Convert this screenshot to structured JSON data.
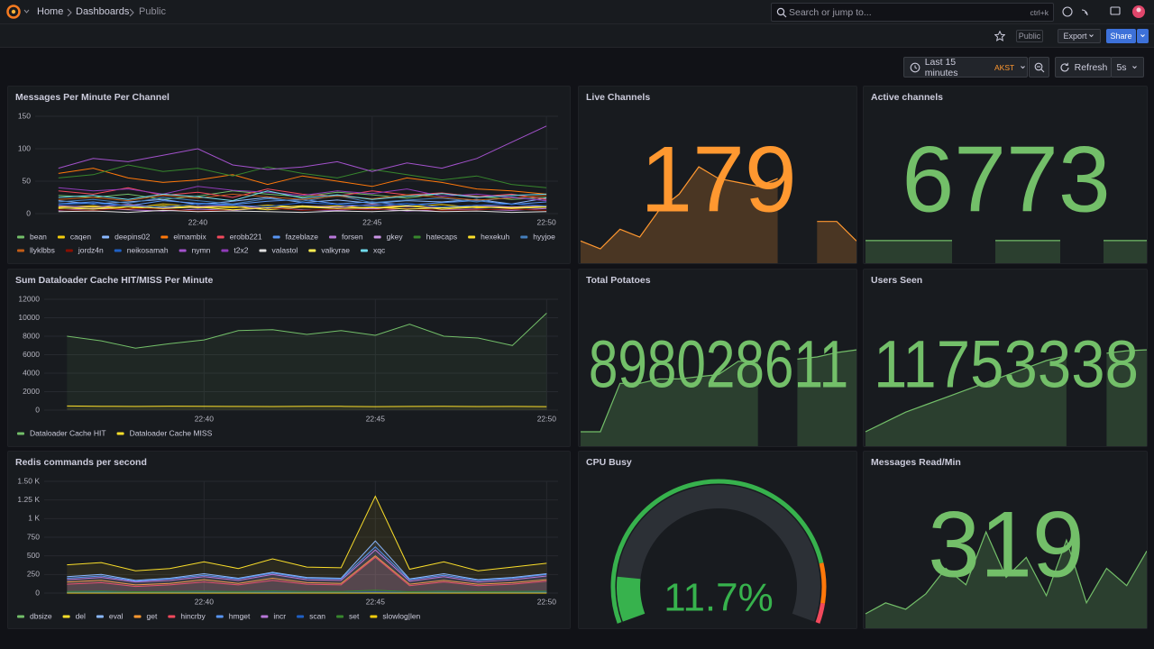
{
  "header": {
    "breadcrumbs": [
      "Home",
      "Dashboards",
      "Public"
    ],
    "search": "Search or jump to...",
    "shortcut": "ctrl+k"
  },
  "toolbar": {
    "badge": "Public",
    "export": "Export",
    "share": "Share",
    "time_range": "Last 15 minutes",
    "timezone": "AKST",
    "refresh": "Refresh",
    "interval": "5s"
  },
  "chart_data": [
    {
      "type": "line",
      "title": "Messages Per Minute Per Channel",
      "x": [
        "22:36",
        "22:37",
        "22:38",
        "22:39",
        "22:40",
        "22:41",
        "22:42",
        "22:43",
        "22:44",
        "22:45",
        "22:46",
        "22:47",
        "22:48",
        "22:49",
        "22:50"
      ],
      "xlim": [
        "22:35:20",
        "22:50:20"
      ],
      "xticks": [
        "22:40",
        "22:45",
        "22:50"
      ],
      "ylim": [
        0,
        150
      ],
      "yticks": [
        0,
        50,
        100,
        150
      ],
      "grid": true,
      "fill": false,
      "series": [
        {
          "name": "bean",
          "color": "#73BF69",
          "values": [
            28,
            25,
            30,
            22,
            27,
            35,
            30,
            26,
            33,
            29,
            24,
            31,
            27,
            22,
            25
          ]
        },
        {
          "name": "caqen",
          "color": "#F2CC0C",
          "values": [
            10,
            12,
            8,
            15,
            11,
            9,
            13,
            10,
            12,
            8,
            11,
            14,
            9,
            10,
            12
          ]
        },
        {
          "name": "deepins02",
          "color": "#8AB8FF",
          "values": [
            20,
            15,
            18,
            22,
            14,
            19,
            25,
            17,
            21,
            16,
            20,
            18,
            22,
            15,
            24
          ]
        },
        {
          "name": "elmambix",
          "color": "#FF780A",
          "values": [
            62,
            70,
            55,
            48,
            52,
            60,
            45,
            58,
            50,
            42,
            55,
            48,
            38,
            35,
            30
          ]
        },
        {
          "name": "erobb221",
          "color": "#F2495C",
          "values": [
            35,
            30,
            40,
            28,
            33,
            25,
            38,
            30,
            27,
            35,
            29,
            32,
            26,
            30,
            22
          ]
        },
        {
          "name": "fazeblaze",
          "color": "#5794F2",
          "values": [
            15,
            18,
            12,
            20,
            16,
            14,
            19,
            22,
            15,
            18,
            13,
            17,
            20,
            14,
            18
          ]
        },
        {
          "name": "forsen",
          "color": "#B877D9",
          "values": [
            5,
            8,
            6,
            4,
            7,
            5,
            9,
            6,
            5,
            8,
            4,
            6,
            7,
            5,
            8
          ]
        },
        {
          "name": "gkey",
          "color": "#CA95E5",
          "values": [
            12,
            10,
            14,
            9,
            11,
            13,
            8,
            12,
            10,
            14,
            11,
            9,
            13,
            10,
            12
          ]
        },
        {
          "name": "hatecaps",
          "color": "#37872D",
          "values": [
            55,
            60,
            75,
            65,
            70,
            58,
            72,
            62,
            55,
            68,
            60,
            52,
            58,
            45,
            40
          ]
        },
        {
          "name": "hexekuh",
          "color": "#FADE2A",
          "values": [
            8,
            10,
            7,
            12,
            9,
            11,
            6,
            10,
            8,
            9,
            12,
            7,
            10,
            9,
            11
          ]
        },
        {
          "name": "hyyjoe",
          "color": "#447EBC",
          "values": [
            18,
            22,
            16,
            25,
            20,
            15,
            23,
            19,
            28,
            17,
            21,
            24,
            18,
            26,
            20
          ]
        },
        {
          "name": "llyklbbs",
          "color": "#C15C17",
          "values": [
            22,
            25,
            20,
            28,
            24,
            30,
            26,
            22,
            27,
            23,
            29,
            25,
            21,
            24,
            28
          ]
        },
        {
          "name": "jordz4n",
          "color": "#890F02",
          "values": [
            6,
            5,
            8,
            7,
            4,
            6,
            9,
            5,
            7,
            6,
            8,
            5,
            6,
            7,
            5
          ]
        },
        {
          "name": "neikosamah",
          "color": "#1F60C4",
          "values": [
            14,
            16,
            12,
            10,
            15,
            13,
            11,
            17,
            14,
            12,
            16,
            10,
            13,
            15,
            12
          ]
        },
        {
          "name": "nymn",
          "color": "#A352CC",
          "values": [
            70,
            85,
            80,
            90,
            100,
            75,
            68,
            72,
            80,
            65,
            78,
            70,
            85,
            110,
            135
          ]
        },
        {
          "name": "t2x2",
          "color": "#8F3BB8",
          "values": [
            40,
            35,
            38,
            30,
            42,
            36,
            33,
            28,
            35,
            31,
            38,
            27,
            30,
            25,
            20
          ]
        },
        {
          "name": "valastol",
          "color": "#E0E0E0",
          "values": [
            3,
            4,
            2,
            5,
            3,
            4,
            3,
            2,
            4,
            3,
            5,
            3,
            4,
            2,
            3
          ]
        },
        {
          "name": "valkyrae",
          "color": "#FFEE52",
          "values": [
            9,
            7,
            11,
            8,
            10,
            6,
            9,
            12,
            8,
            10,
            7,
            9,
            11,
            8,
            10
          ]
        },
        {
          "name": "xqc",
          "color": "#70DBED",
          "values": [
            25,
            28,
            22,
            30,
            26,
            20,
            35,
            24,
            29,
            22,
            27,
            31,
            25,
            28,
            30
          ]
        }
      ]
    },
    {
      "type": "stat",
      "title": "Live Channels",
      "value": 179,
      "color": "#FF9830",
      "values": [
        160,
        158,
        163,
        161,
        168,
        172,
        179,
        176,
        175,
        174,
        176,
        null,
        165,
        165,
        160
      ]
    },
    {
      "type": "stat",
      "title": "Active channels",
      "value": 6773,
      "color": "#73BF69",
      "values": [
        6773,
        6773,
        6773,
        6773,
        6773,
        null,
        6773,
        6773,
        6773,
        6773,
        null,
        6773,
        6773,
        6773
      ]
    },
    {
      "type": "line",
      "title": "Sum Dataloader Cache HIT/MISS Per Minute",
      "x": [
        "22:36",
        "22:37",
        "22:38",
        "22:39",
        "22:40",
        "22:41",
        "22:42",
        "22:43",
        "22:44",
        "22:45",
        "22:46",
        "22:47",
        "22:48",
        "22:49",
        "22:50"
      ],
      "xlim": [
        "22:35:20",
        "22:50:20"
      ],
      "xticks": [
        "22:40",
        "22:45",
        "22:50"
      ],
      "ylim": [
        0,
        12000
      ],
      "yticks": [
        0,
        2000,
        4000,
        6000,
        8000,
        10000,
        12000
      ],
      "grid": true,
      "fill": true,
      "series": [
        {
          "name": "Dataloader Cache HIT",
          "color": "#73BF69",
          "values": [
            8000,
            7500,
            6700,
            7200,
            7600,
            8600,
            8700,
            8200,
            8600,
            8100,
            9300,
            8000,
            7800,
            7000,
            10500
          ]
        },
        {
          "name": "Dataloader Cache MISS",
          "color": "#FADE2A",
          "values": [
            450,
            420,
            400,
            430,
            410,
            400,
            390,
            420,
            410,
            380,
            400,
            410,
            390,
            400,
            380
          ]
        }
      ]
    },
    {
      "type": "stat",
      "title": "Total Potatoes",
      "value": 898028611,
      "color": "#73BF69",
      "values": [
        898010000,
        898010000,
        898021000,
        898021000,
        898022000,
        898022000,
        898022500,
        898023000,
        898026000,
        898026000,
        null,
        898026500,
        898027000,
        898028000,
        898028611
      ]
    },
    {
      "type": "stat",
      "title": "Users Seen",
      "value": 11753338,
      "color": "#73BF69",
      "values": [
        11750000,
        11750400,
        11750800,
        11751100,
        11751400,
        11751700,
        11752000,
        11752300,
        11752600,
        11752900,
        11753100,
        null,
        11753200,
        11753300,
        11753338
      ]
    },
    {
      "type": "line",
      "title": "Redis commands per second",
      "x": [
        "22:36",
        "22:37",
        "22:38",
        "22:39",
        "22:40",
        "22:41",
        "22:42",
        "22:43",
        "22:44",
        "22:45",
        "22:46",
        "22:47",
        "22:48",
        "22:49",
        "22:50"
      ],
      "xlim": [
        "22:35:20",
        "22:50:20"
      ],
      "xticks": [
        "22:40",
        "22:45",
        "22:50"
      ],
      "ylim": [
        0,
        1500
      ],
      "yticks": [
        0,
        250,
        500,
        750,
        {
          "value": 1000,
          "label": "1 K"
        },
        {
          "value": 1250,
          "label": "1.25 K"
        },
        {
          "value": 1500,
          "label": "1.50 K"
        }
      ],
      "grid": true,
      "fill": true,
      "series": [
        {
          "name": "dbsize",
          "color": "#73BF69",
          "values": [
            5,
            5,
            5,
            5,
            5,
            5,
            5,
            5,
            5,
            5,
            5,
            5,
            5,
            5,
            5
          ]
        },
        {
          "name": "del",
          "color": "#FADE2A",
          "values": [
            380,
            410,
            300,
            330,
            420,
            330,
            460,
            350,
            340,
            1300,
            320,
            420,
            300,
            350,
            400
          ]
        },
        {
          "name": "eval",
          "color": "#8AB8FF",
          "values": [
            220,
            250,
            170,
            200,
            260,
            200,
            280,
            210,
            200,
            700,
            190,
            260,
            180,
            210,
            260
          ]
        },
        {
          "name": "get",
          "color": "#FF9830",
          "values": [
            150,
            170,
            110,
            130,
            180,
            130,
            200,
            140,
            130,
            500,
            120,
            170,
            120,
            140,
            180
          ]
        },
        {
          "name": "hincrby",
          "color": "#F2495C",
          "values": [
            120,
            140,
            90,
            110,
            150,
            110,
            170,
            120,
            110,
            480,
            100,
            150,
            100,
            120,
            160
          ]
        },
        {
          "name": "hmget",
          "color": "#5794F2",
          "values": [
            200,
            230,
            160,
            190,
            240,
            190,
            270,
            200,
            190,
            620,
            180,
            240,
            170,
            200,
            250
          ]
        },
        {
          "name": "incr",
          "color": "#B877D9",
          "values": [
            180,
            210,
            150,
            170,
            220,
            170,
            250,
            180,
            170,
            580,
            160,
            220,
            150,
            180,
            230
          ]
        },
        {
          "name": "scan",
          "color": "#1F60C4",
          "values": [
            10,
            12,
            8,
            10,
            11,
            9,
            12,
            10,
            9,
            15,
            8,
            11,
            9,
            10,
            12
          ]
        },
        {
          "name": "set",
          "color": "#37872D",
          "values": [
            20,
            25,
            18,
            22,
            26,
            20,
            28,
            22,
            20,
            40,
            18,
            25,
            18,
            22,
            26
          ]
        },
        {
          "name": "slowlog|len",
          "color": "#F2CC0C",
          "values": [
            0,
            0,
            0,
            0,
            0,
            0,
            0,
            0,
            0,
            0,
            0,
            0,
            0,
            0,
            0
          ]
        }
      ]
    },
    {
      "type": "gauge",
      "title": "CPU Busy",
      "value": 11.7,
      "value_label": "11.7%",
      "min": 0,
      "max": 100,
      "color": "#37b24d",
      "thresholds": [
        {
          "value": 0,
          "color": "#37b24d"
        },
        {
          "value": 85,
          "color": "#FF780A"
        },
        {
          "value": 95,
          "color": "#F2495C"
        }
      ]
    },
    {
      "type": "stat",
      "title": "Messages Read/Min",
      "value": 319,
      "color": "#73BF69",
      "values": [
        250,
        262,
        255,
        272,
        300,
        282,
        340,
        290,
        312,
        270,
        331,
        262,
        300,
        281,
        319
      ]
    }
  ]
}
